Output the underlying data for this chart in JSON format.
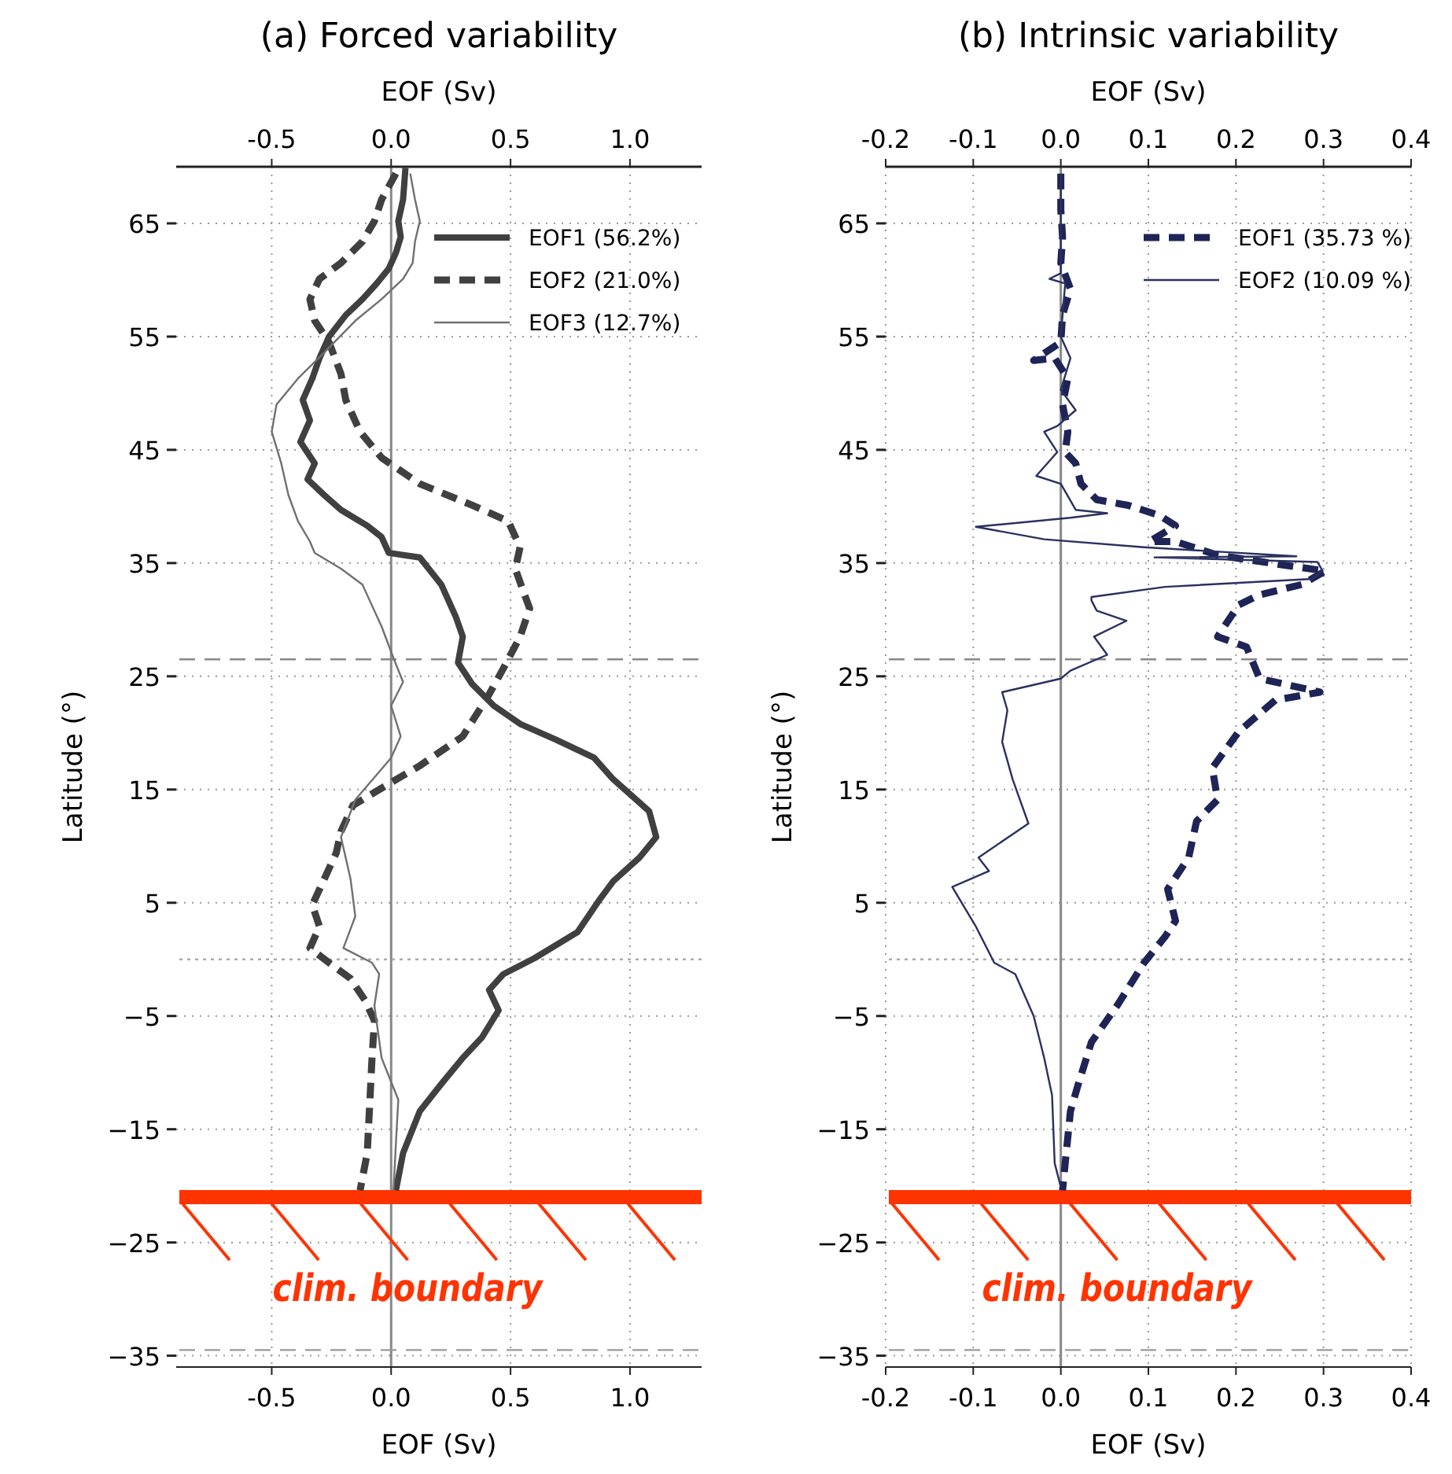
{
  "chart_data": [
    {
      "type": "line",
      "title": "(a) Forced variability",
      "xlabel": "EOF (Sv)",
      "x2label": "EOF (Sv)",
      "ylabel": "Latitude (°)",
      "xlim": [
        -0.9,
        1.3
      ],
      "xticks": [
        {
          "value": -0.5,
          "label": "-0.5"
        },
        {
          "value": 0,
          "label": "0.0"
        },
        {
          "value": 0.5,
          "label": "0.5"
        },
        {
          "value": 1,
          "label": "1.0"
        }
      ],
      "x2lim": [
        -0.9,
        1.3
      ],
      "x2ticks": [
        {
          "value": -0.5,
          "label": "-0.5"
        },
        {
          "value": 0,
          "label": "0.0"
        },
        {
          "value": 0.5,
          "label": "0.5"
        },
        {
          "value": 1,
          "label": "1.0"
        }
      ],
      "ylim": [
        -36,
        70
      ],
      "yticks": [
        -35,
        -25,
        -15,
        -5,
        5,
        15,
        25,
        35,
        45,
        55,
        65
      ],
      "grid": true,
      "legend": "top right",
      "ref_lines": [
        {
          "axis": "x",
          "value": 0,
          "color": "#888888",
          "line_style": "solid"
        },
        {
          "axis": "y",
          "value": 0,
          "color": "#aaaaaa",
          "line_style": "dotted"
        },
        {
          "axis": "y",
          "value": 26.5,
          "color": "#888888",
          "line_style": "dashed"
        },
        {
          "axis": "y",
          "value": -34.5,
          "color": "#999999",
          "line_style": "dashed"
        },
        {
          "axis": "y",
          "value": -21,
          "label": "clim. boundary",
          "color": "#ff3300",
          "line_style": "solid"
        }
      ],
      "series": [
        {
          "name": "EOF1 (56.2%)",
          "color": "#404040",
          "line_style": "solid",
          "x": [
            0.06,
            0.05,
            0.03,
            0.04,
            0.02,
            -0.01,
            -0.06,
            -0.12,
            -0.19,
            -0.26,
            -0.3,
            -0.33,
            -0.37,
            -0.34,
            -0.38,
            -0.32,
            -0.35,
            -0.28,
            -0.21,
            -0.1,
            -0.04,
            -0.01,
            0.12,
            0.21,
            0.27,
            0.3,
            0.28,
            0.34,
            0.43,
            0.54,
            0.69,
            0.85,
            0.93,
            1.08,
            1.11,
            1.04,
            0.93,
            0.87,
            0.78,
            0.6,
            0.47,
            0.41,
            0.45,
            0.38,
            0.3,
            0.21,
            0.12,
            0.05,
            0.02
          ],
          "values": [
            69.9,
            67.1,
            65.2,
            63.8,
            62.4,
            61.0,
            59.7,
            58.3,
            56.9,
            55.0,
            53.1,
            51.3,
            49.4,
            47.6,
            45.7,
            43.8,
            42.4,
            41.0,
            39.7,
            38.3,
            37.3,
            35.9,
            35.5,
            33.1,
            30.3,
            28.5,
            26.2,
            24.3,
            22.4,
            20.8,
            19.4,
            17.8,
            15.9,
            13.1,
            10.8,
            9.0,
            6.9,
            5.2,
            2.4,
            0.1,
            -1.3,
            -2.7,
            -4.5,
            -6.9,
            -8.7,
            -11.0,
            -13.4,
            -17.1,
            -20.4
          ]
        },
        {
          "name": "EOF2 (21.0%)",
          "color": "#404040",
          "line_style": "dashed",
          "x": [
            0.02,
            -0.04,
            -0.07,
            -0.12,
            -0.21,
            -0.3,
            -0.34,
            -0.32,
            -0.26,
            -0.21,
            -0.19,
            -0.13,
            -0.04,
            0.12,
            0.34,
            0.49,
            0.54,
            0.52,
            0.55,
            0.58,
            0.54,
            0.47,
            0.41,
            0.3,
            0.12,
            -0.01,
            -0.16,
            -0.21,
            -0.23,
            -0.28,
            -0.33,
            -0.3,
            -0.34,
            -0.26,
            -0.17,
            -0.11,
            -0.07,
            -0.08,
            -0.09,
            -0.1,
            -0.13
          ],
          "values": [
            69.4,
            67.1,
            65.2,
            63.4,
            61.5,
            60.1,
            58.3,
            56.4,
            54.5,
            51.7,
            49.4,
            46.6,
            44.3,
            42.0,
            40.1,
            38.7,
            36.4,
            34.5,
            32.7,
            31.0,
            28.5,
            25.7,
            23.4,
            19.7,
            17.1,
            15.5,
            13.6,
            11.3,
            9.4,
            7.1,
            4.8,
            2.9,
            1.0,
            -0.3,
            -1.7,
            -3.6,
            -5.4,
            -8.7,
            -12.9,
            -17.1,
            -20.4
          ]
        },
        {
          "name": "EOF3 (12.7%)",
          "color": "#707070",
          "line_style": "solid",
          "x": [
            0.08,
            0.1,
            0.12,
            0.1,
            0.09,
            0.05,
            -0.04,
            -0.15,
            -0.28,
            -0.39,
            -0.48,
            -0.5,
            -0.46,
            -0.43,
            -0.39,
            -0.34,
            -0.32,
            -0.21,
            -0.12,
            -0.09,
            -0.04,
            0.01,
            0.05,
            0,
            0.04,
            0,
            -0.15,
            -0.21,
            -0.17,
            -0.15,
            -0.2,
            -0.08,
            -0.05,
            -0.07,
            -0.04,
            0.03,
            0.02,
            0.01
          ],
          "values": [
            69.4,
            67.1,
            65.2,
            63.4,
            61.5,
            60.1,
            58.3,
            56.4,
            53.6,
            51.3,
            49.0,
            46.6,
            43.8,
            41.0,
            38.7,
            36.9,
            35.9,
            34.5,
            33.1,
            31.7,
            29.4,
            26.6,
            24.5,
            22.4,
            19.7,
            17.8,
            14.1,
            10.8,
            7.1,
            3.8,
            1.0,
            -0.3,
            -1.3,
            -4.1,
            -8.7,
            -12.4,
            -16.2,
            -20.4
          ]
        }
      ]
    },
    {
      "type": "line",
      "title": "(b) Intrinsic variability",
      "xlabel": "EOF (Sv)",
      "x2label": "EOF (Sv)",
      "ylabel": "Latitude (°)",
      "xlim": [
        -0.2,
        0.4
      ],
      "xticks": [
        {
          "value": -0.2,
          "label": "-0.2"
        },
        {
          "value": -0.1,
          "label": "-0.1"
        },
        {
          "value": 0,
          "label": "0.0"
        },
        0.1,
        0.2,
        0.3,
        0.4
      ],
      "x2lim": [
        -0.2,
        0.4
      ],
      "x2ticks": [
        {
          "value": -0.2,
          "label": "-0.2"
        },
        {
          "value": -0.1,
          "label": "-0.1"
        },
        {
          "value": 0,
          "label": "0.0"
        },
        0.1,
        0.2,
        0.3,
        0.4
      ],
      "ylim": [
        -36,
        70
      ],
      "yticks": [
        -35,
        -25,
        -15,
        -5,
        5,
        15,
        25,
        35,
        45,
        55,
        65
      ],
      "grid": true,
      "legend": "top right",
      "ref_lines": [
        {
          "axis": "x",
          "value": 0,
          "color": "#888888",
          "line_style": "solid"
        },
        {
          "axis": "y",
          "value": 0,
          "color": "#aaaaaa",
          "line_style": "dotted"
        },
        {
          "axis": "y",
          "value": 26.5,
          "color": "#888888",
          "line_style": "dashed"
        },
        {
          "axis": "y",
          "value": -34.5,
          "color": "#999999",
          "line_style": "dashed"
        },
        {
          "axis": "y",
          "value": -21,
          "label": "clim. boundary",
          "color": "#ff3300",
          "line_style": "solid"
        }
      ],
      "series": [
        {
          "name": "EOF1 (35.73 %)",
          "color": "#1f2456",
          "line_style": "dashed",
          "x": [
            0,
            0,
            0.002,
            0,
            0.011,
            0.002,
            0,
            -0.031,
            -0.007,
            0.008,
            0.002,
            0.008,
            0.005,
            0.017,
            0.023,
            0.041,
            0.077,
            0.113,
            0.131,
            0.101,
            0.131,
            0.179,
            0.257,
            0.302,
            0.275,
            0.227,
            0.203,
            0.179,
            0.212,
            0.227,
            0.296,
            0.245,
            0.203,
            0.173,
            0.179,
            0.155,
            0.146,
            0.122,
            0.131,
            0.119,
            0.095,
            0.065,
            0.035,
            0.02,
            0.011,
            0.005,
            0.002
          ],
          "values": [
            69.4,
            66.2,
            63.8,
            61.5,
            59.2,
            56.9,
            54.5,
            52.9,
            53.1,
            51.3,
            49.0,
            46.6,
            44.8,
            43.8,
            42.0,
            40.6,
            40.1,
            39.2,
            38.3,
            36.9,
            36.9,
            35.7,
            34.8,
            34.3,
            33.1,
            32.2,
            31.3,
            28.5,
            27.6,
            24.8,
            23.6,
            22.9,
            20.1,
            16.9,
            14.1,
            12.2,
            9.0,
            6.2,
            3.4,
            2.0,
            -0.3,
            -4.0,
            -7.3,
            -11.0,
            -13.4,
            -18.0,
            -20.4
          ]
        },
        {
          "name": "EOF2 (10.09 %)",
          "color": "#2a3060",
          "line_style": "solid",
          "x": [
            0,
            0,
            -0.013,
            0.005,
            0,
            0.011,
            0,
            0.017,
            -0.004,
            -0.019,
            -0.004,
            -0.028,
            0,
            0.017,
            0.053,
            0.011,
            -0.097,
            -0.019,
            0.095,
            0.269,
            0.107,
            0.293,
            0.299,
            0.287,
            0.119,
            0.035,
            0.035,
            0.041,
            0.075,
            0.038,
            0.053,
            0.011,
            0,
            -0.067,
            -0.061,
            -0.067,
            -0.055,
            -0.037,
            -0.094,
            -0.082,
            -0.124,
            -0.097,
            -0.076,
            -0.052,
            -0.031,
            -0.019,
            -0.01,
            -0.007,
            0
          ],
          "values": [
            69.4,
            60.6,
            60.1,
            59.7,
            55.0,
            53.1,
            50.3,
            48.5,
            47.1,
            46.6,
            44.8,
            42.7,
            42.0,
            39.7,
            39.4,
            39.0,
            38.2,
            37.1,
            36.4,
            35.6,
            35.5,
            35.1,
            34.3,
            33.6,
            32.9,
            32.0,
            31.7,
            30.8,
            29.9,
            28.5,
            26.9,
            25.5,
            24.8,
            23.6,
            22.0,
            19.2,
            15.9,
            12.0,
            9.0,
            7.8,
            6.4,
            2.9,
            -0.3,
            -1.3,
            -5.0,
            -8.7,
            -12.0,
            -18.0,
            -20.1
          ]
        }
      ]
    }
  ]
}
